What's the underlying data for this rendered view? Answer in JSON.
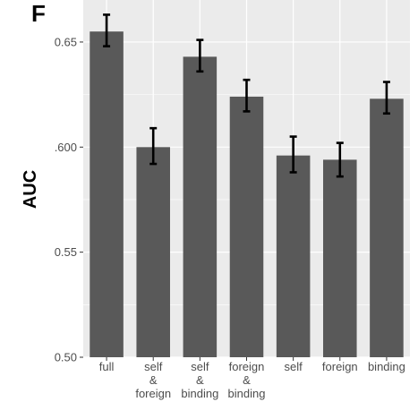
{
  "panel_letter": "F",
  "chart_data": {
    "type": "bar",
    "categories": [
      [
        "full"
      ],
      [
        "self",
        "&",
        "foreign"
      ],
      [
        "self",
        "&",
        "binding"
      ],
      [
        "foreign",
        "&",
        "binding"
      ],
      [
        "self"
      ],
      [
        "foreign"
      ],
      [
        "binding"
      ]
    ],
    "values": [
      0.655,
      0.6,
      0.643,
      0.624,
      0.596,
      0.594,
      0.623
    ],
    "error_low": [
      0.648,
      0.592,
      0.636,
      0.617,
      0.588,
      0.586,
      0.616
    ],
    "error_high": [
      0.663,
      0.609,
      0.651,
      0.632,
      0.605,
      0.602,
      0.631
    ],
    "ylabel": "AUC",
    "ylim": [
      0.5,
      0.67
    ],
    "yticks": [
      {
        "value": 0.5,
        "label": "0.50"
      },
      {
        "value": 0.55,
        "label": "0.55"
      },
      {
        "value": 0.6,
        "label": ".600"
      },
      {
        "value": 0.65,
        "label": "0.65"
      }
    ],
    "grid": true,
    "colors": {
      "panel_bg": "#ebebeb",
      "grid_major": "#ffffff",
      "bar": "#595959",
      "error_bar": "#000000"
    }
  }
}
